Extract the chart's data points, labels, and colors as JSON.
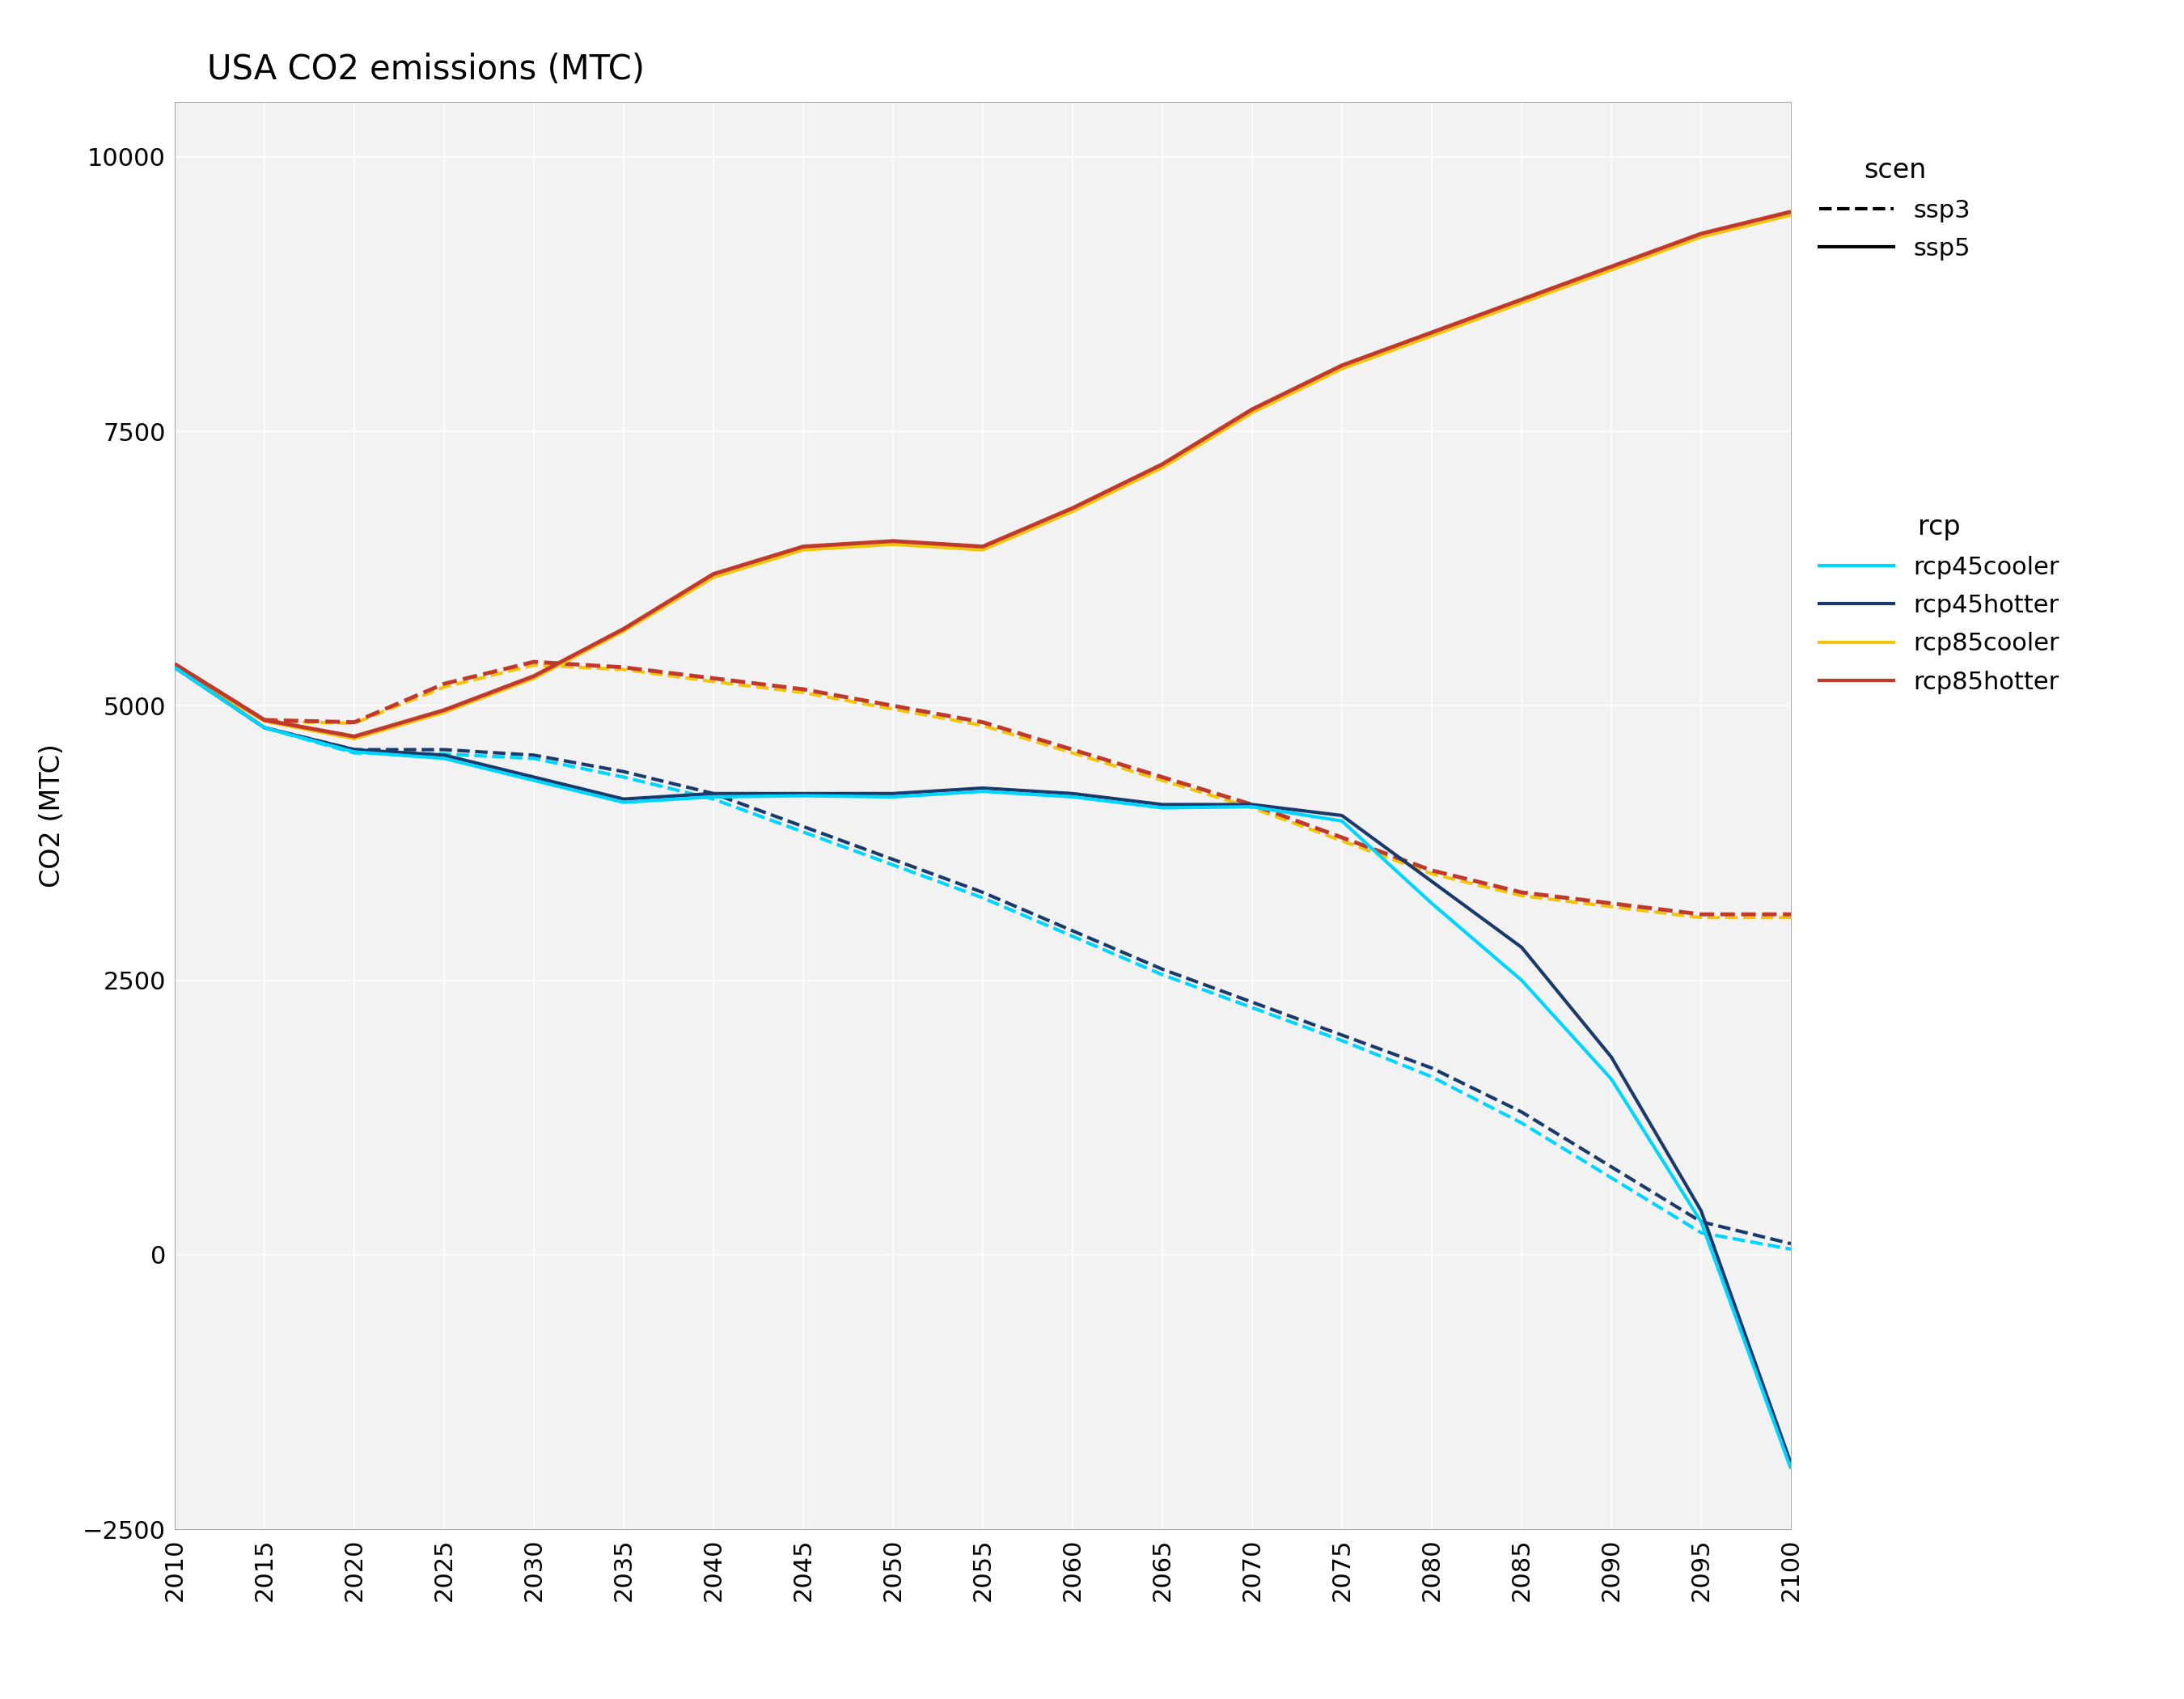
{
  "title": "USA CO2 emissions (MTC)",
  "ylabel": "CO2 (MTC)",
  "xlabel": "",
  "xlim": [
    2010,
    2100
  ],
  "ylim": [
    -2500,
    10500
  ],
  "yticks": [
    -2500,
    0,
    2500,
    5000,
    7500,
    10000
  ],
  "xticks": [
    2010,
    2015,
    2020,
    2025,
    2030,
    2035,
    2040,
    2045,
    2050,
    2055,
    2060,
    2065,
    2070,
    2075,
    2080,
    2085,
    2090,
    2095,
    2100
  ],
  "background_color": "#ffffff",
  "plot_bg_color": "#f2f2f2",
  "grid_color": "#ffffff",
  "series": {
    "rcp85hotter_ssp5": {
      "color": "#c0392b",
      "linestyle": "solid",
      "linewidth": 3.5,
      "x": [
        2010,
        2015,
        2020,
        2025,
        2030,
        2035,
        2040,
        2045,
        2050,
        2055,
        2060,
        2065,
        2070,
        2075,
        2080,
        2085,
        2090,
        2095,
        2100
      ],
      "y": [
        5380,
        4870,
        4720,
        4960,
        5270,
        5700,
        6200,
        6450,
        6500,
        6450,
        6800,
        7200,
        7700,
        8100,
        8400,
        8700,
        9000,
        9300,
        9500
      ],
      "zorder": 5
    },
    "rcp85cooler_ssp5": {
      "color": "#f1c40f",
      "linestyle": "solid",
      "linewidth": 3.0,
      "x": [
        2010,
        2015,
        2020,
        2025,
        2030,
        2035,
        2040,
        2045,
        2050,
        2055,
        2060,
        2065,
        2070,
        2075,
        2080,
        2085,
        2090,
        2095,
        2100
      ],
      "y": [
        5350,
        4860,
        4700,
        4940,
        5250,
        5680,
        6170,
        6420,
        6470,
        6420,
        6770,
        7170,
        7670,
        8070,
        8370,
        8670,
        8970,
        9270,
        9470
      ],
      "zorder": 4
    },
    "rcp85hotter_ssp3": {
      "color": "#c0392b",
      "linestyle": "dashed",
      "linewidth": 3.5,
      "x": [
        2010,
        2015,
        2020,
        2025,
        2030,
        2035,
        2040,
        2045,
        2050,
        2055,
        2060,
        2065,
        2070,
        2075,
        2080,
        2085,
        2090,
        2095,
        2100
      ],
      "y": [
        5380,
        4870,
        4850,
        5200,
        5400,
        5350,
        5250,
        5150,
        5000,
        4850,
        4600,
        4350,
        4100,
        3800,
        3500,
        3300,
        3200,
        3100,
        3100
      ],
      "zorder": 3
    },
    "rcp85cooler_ssp3": {
      "color": "#f1c40f",
      "linestyle": "dashed",
      "linewidth": 3.0,
      "x": [
        2010,
        2015,
        2020,
        2025,
        2030,
        2035,
        2040,
        2045,
        2050,
        2055,
        2060,
        2065,
        2070,
        2075,
        2080,
        2085,
        2090,
        2095,
        2100
      ],
      "y": [
        5350,
        4860,
        4840,
        5170,
        5370,
        5330,
        5220,
        5120,
        4970,
        4820,
        4570,
        4320,
        4070,
        3770,
        3470,
        3270,
        3170,
        3070,
        3070
      ],
      "zorder": 2
    },
    "rcp45hotter_ssp5": {
      "color": "#1a3a6b",
      "linestyle": "solid",
      "linewidth": 3.0,
      "x": [
        2010,
        2015,
        2020,
        2025,
        2030,
        2035,
        2040,
        2045,
        2050,
        2055,
        2060,
        2065,
        2070,
        2075,
        2080,
        2085,
        2090,
        2095,
        2100
      ],
      "y": [
        5350,
        4800,
        4600,
        4550,
        4350,
        4150,
        4200,
        4200,
        4200,
        4250,
        4200,
        4100,
        4100,
        4000,
        3400,
        2800,
        1800,
        400,
        -1900
      ],
      "zorder": 6
    },
    "rcp45cooler_ssp5": {
      "color": "#00d5ff",
      "linestyle": "solid",
      "linewidth": 3.0,
      "x": [
        2010,
        2015,
        2020,
        2025,
        2030,
        2035,
        2040,
        2045,
        2050,
        2055,
        2060,
        2065,
        2070,
        2075,
        2080,
        2085,
        2090,
        2095,
        2100
      ],
      "y": [
        5350,
        4800,
        4580,
        4520,
        4320,
        4120,
        4170,
        4180,
        4170,
        4220,
        4170,
        4070,
        4080,
        3950,
        3200,
        2500,
        1600,
        300,
        -1950
      ],
      "zorder": 7
    },
    "rcp45hotter_ssp3": {
      "color": "#1a3a6b",
      "linestyle": "dashed",
      "linewidth": 3.0,
      "x": [
        2010,
        2015,
        2020,
        2025,
        2030,
        2035,
        2040,
        2045,
        2050,
        2055,
        2060,
        2065,
        2070,
        2075,
        2080,
        2085,
        2090,
        2095,
        2100
      ],
      "y": [
        5350,
        4800,
        4600,
        4600,
        4550,
        4400,
        4200,
        3900,
        3600,
        3300,
        2950,
        2600,
        2300,
        2000,
        1700,
        1300,
        800,
        300,
        100
      ],
      "zorder": 4
    },
    "rcp45cooler_ssp3": {
      "color": "#00d5ff",
      "linestyle": "dashed",
      "linewidth": 3.0,
      "x": [
        2010,
        2015,
        2020,
        2025,
        2030,
        2035,
        2040,
        2045,
        2050,
        2055,
        2060,
        2065,
        2070,
        2075,
        2080,
        2085,
        2090,
        2095,
        2100
      ],
      "y": [
        5350,
        4800,
        4570,
        4560,
        4520,
        4350,
        4150,
        3850,
        3550,
        3250,
        2900,
        2550,
        2250,
        1950,
        1620,
        1200,
        700,
        200,
        50
      ],
      "zorder": 5
    }
  },
  "legend_scen": {
    "title": "scen",
    "items": [
      {
        "label": "ssp3",
        "linestyle": "dashed",
        "color": "#000000"
      },
      {
        "label": "ssp5",
        "linestyle": "solid",
        "color": "#000000"
      }
    ]
  },
  "legend_rcp": {
    "title": "rcp",
    "items": [
      {
        "label": "rcp45cooler",
        "color": "#00d5ff"
      },
      {
        "label": "rcp45hotter",
        "color": "#1a3a6b"
      },
      {
        "label": "rcp85cooler",
        "color": "#f1c40f"
      },
      {
        "label": "rcp85hotter",
        "color": "#c0392b"
      }
    ]
  }
}
